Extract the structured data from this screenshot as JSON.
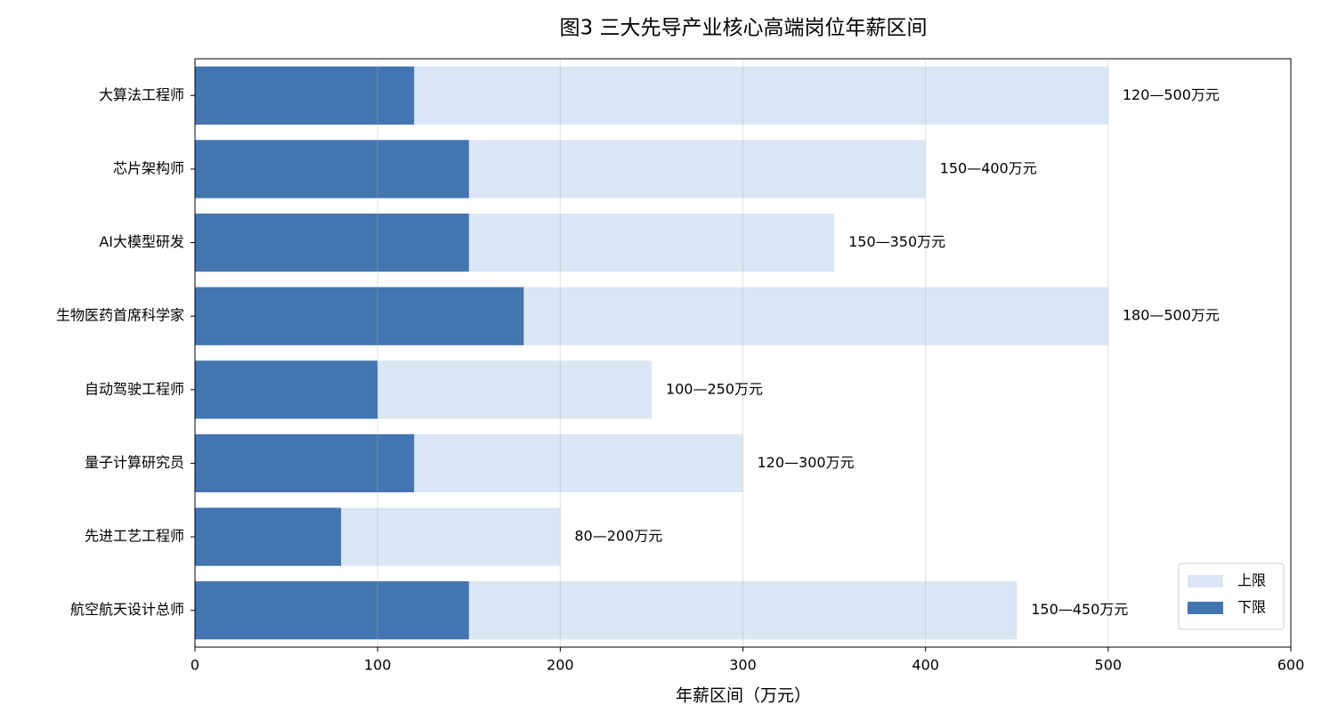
{
  "chart_data": {
    "type": "bar",
    "orientation": "horizontal",
    "overlap": true,
    "title": "图3  三大先导产业核心高端岗位年薪区间",
    "xlabel": "年薪区间（万元）",
    "categories": [
      "大算法工程师",
      "芯片架构师",
      "AI大模型研发",
      "生物医药首席科学家",
      "自动驾驶工程师",
      "量子计算研究员",
      "先进工艺工程师",
      "航空航天设计总师"
    ],
    "series": [
      {
        "name": "上限",
        "color": "#dae6f3",
        "values": [
          500,
          400,
          350,
          500,
          250,
          300,
          200,
          450
        ],
        "value_labels": [
          "120—500万元",
          "150—400万元",
          "150—350万元",
          "180—500万元",
          "100—250万元",
          "120—300万元",
          "80—200万元",
          "150—450万元"
        ]
      },
      {
        "name": "下限",
        "color": "#4375b0",
        "values": [
          120,
          150,
          150,
          180,
          100,
          120,
          80,
          150
        ]
      }
    ],
    "xlim": [
      0,
      600
    ],
    "xticks": [
      0,
      100,
      200,
      300,
      400,
      500,
      600
    ],
    "grid": true,
    "legend": "lower right"
  }
}
